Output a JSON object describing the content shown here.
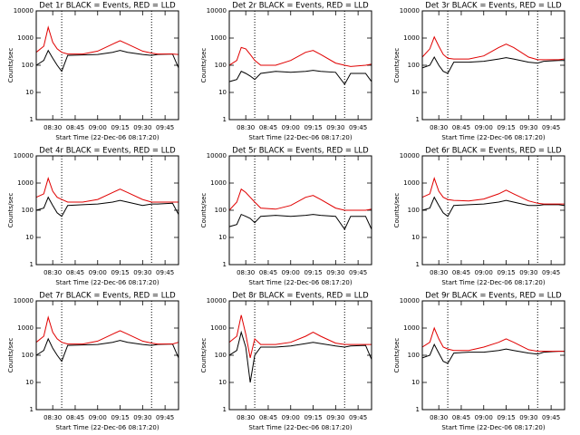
{
  "chart_data": [
    {
      "type": "line",
      "title": "Det 1r BLACK = Events, RED = LLD",
      "xlabel": "Start Time (22-Dec-06 08:17:20)",
      "ylabel": "Counts/sec",
      "log_y": true,
      "x": [
        "08:19",
        "08:24",
        "08:27",
        "08:30",
        "08:33",
        "08:36",
        "08:40",
        "08:50",
        "09:00",
        "09:10",
        "09:15",
        "09:20",
        "09:30",
        "09:36",
        "09:40",
        "09:50",
        "09:54"
      ],
      "series": [
        {
          "color": "#000000",
          "values": [
            100,
            150,
            350,
            180,
            100,
            60,
            230,
            240,
            250,
            300,
            350,
            300,
            250,
            230,
            250,
            260,
            80
          ]
        },
        {
          "color": "#e00000",
          "values": [
            300,
            500,
            2500,
            700,
            400,
            300,
            260,
            260,
            330,
            600,
            800,
            600,
            330,
            280,
            260,
            260,
            250
          ]
        }
      ],
      "vlines": [
        "08:36",
        "09:36"
      ],
      "xlim": [
        "08:19",
        "09:54"
      ],
      "xticks": [
        "08:30",
        "08:45",
        "09:00",
        "09:15",
        "09:30",
        "09:45"
      ],
      "ylim": [
        1,
        10000
      ],
      "yticks": [
        1,
        10,
        100,
        1000,
        10000
      ]
    },
    {
      "type": "line",
      "title": "Det 2r BLACK = Events, RED = LLD",
      "xlabel": "Start Time (22-Dec-06 08:17:20)",
      "ylabel": "Counts/sec",
      "log_y": true,
      "x": [
        "08:19",
        "08:24",
        "08:27",
        "08:30",
        "08:33",
        "08:36",
        "08:40",
        "08:50",
        "09:00",
        "09:10",
        "09:15",
        "09:20",
        "09:30",
        "09:36",
        "09:40",
        "09:50",
        "09:54"
      ],
      "series": [
        {
          "color": "#000000",
          "values": [
            25,
            30,
            60,
            50,
            40,
            30,
            50,
            60,
            55,
            60,
            65,
            60,
            55,
            20,
            50,
            50,
            25
          ]
        },
        {
          "color": "#e00000",
          "values": [
            100,
            150,
            450,
            400,
            250,
            150,
            100,
            100,
            150,
            300,
            350,
            250,
            120,
            100,
            90,
            100,
            110
          ]
        }
      ],
      "vlines": [
        "08:36",
        "09:36"
      ],
      "xlim": [
        "08:19",
        "09:54"
      ],
      "xticks": [
        "08:30",
        "08:45",
        "09:00",
        "09:15",
        "09:30",
        "09:45"
      ],
      "ylim": [
        1,
        10000
      ],
      "yticks": [
        1,
        10,
        100,
        1000,
        10000
      ]
    },
    {
      "type": "line",
      "title": "Det 3r BLACK = Events, RED = LLD",
      "xlabel": "Start Time (22-Dec-06 08:17:20)",
      "ylabel": "Counts/sec",
      "log_y": true,
      "x": [
        "08:19",
        "08:24",
        "08:27",
        "08:30",
        "08:33",
        "08:36",
        "08:40",
        "08:50",
        "09:00",
        "09:10",
        "09:15",
        "09:20",
        "09:30",
        "09:36",
        "09:40",
        "09:50",
        "09:54"
      ],
      "series": [
        {
          "color": "#000000",
          "values": [
            80,
            100,
            200,
            100,
            60,
            50,
            130,
            130,
            140,
            170,
            190,
            170,
            130,
            120,
            140,
            150,
            150
          ]
        },
        {
          "color": "#e00000",
          "values": [
            200,
            400,
            1100,
            500,
            250,
            180,
            170,
            170,
            220,
            450,
            600,
            450,
            200,
            160,
            160,
            160,
            170
          ]
        }
      ],
      "vlines": [
        "08:36",
        "09:36"
      ],
      "xlim": [
        "08:19",
        "09:54"
      ],
      "xticks": [
        "08:30",
        "08:45",
        "09:00",
        "09:15",
        "09:30",
        "09:45"
      ],
      "ylim": [
        1,
        10000
      ],
      "yticks": [
        1,
        10,
        100,
        1000,
        10000
      ]
    },
    {
      "type": "line",
      "title": "Det 4r BLACK = Events, RED = LLD",
      "xlabel": "Start Time (22-Dec-06 08:17:20)",
      "ylabel": "Counts/sec",
      "log_y": true,
      "x": [
        "08:19",
        "08:24",
        "08:27",
        "08:30",
        "08:33",
        "08:36",
        "08:40",
        "08:50",
        "09:00",
        "09:10",
        "09:15",
        "09:20",
        "09:30",
        "09:36",
        "09:40",
        "09:50",
        "09:54"
      ],
      "series": [
        {
          "color": "#000000",
          "values": [
            100,
            120,
            300,
            150,
            80,
            60,
            150,
            160,
            170,
            200,
            230,
            200,
            150,
            170,
            170,
            180,
            70
          ]
        },
        {
          "color": "#e00000",
          "values": [
            300,
            400,
            1500,
            500,
            300,
            250,
            200,
            200,
            250,
            450,
            600,
            450,
            250,
            200,
            200,
            200,
            200
          ]
        }
      ],
      "vlines": [
        "08:36",
        "09:36"
      ],
      "xlim": [
        "08:19",
        "09:54"
      ],
      "xticks": [
        "08:30",
        "08:45",
        "09:00",
        "09:15",
        "09:30",
        "09:45"
      ],
      "ylim": [
        1,
        10000
      ],
      "yticks": [
        1,
        10,
        100,
        1000,
        10000
      ]
    },
    {
      "type": "line",
      "title": "Det 5r BLACK = Events, RED = LLD",
      "xlabel": "Start Time (22-Dec-06 08:17:20)",
      "ylabel": "Counts/sec",
      "log_y": true,
      "x": [
        "08:19",
        "08:24",
        "08:27",
        "08:30",
        "08:33",
        "08:36",
        "08:40",
        "08:50",
        "09:00",
        "09:10",
        "09:15",
        "09:20",
        "09:30",
        "09:36",
        "09:40",
        "09:50",
        "09:54"
      ],
      "series": [
        {
          "color": "#000000",
          "values": [
            25,
            30,
            70,
            60,
            50,
            35,
            60,
            65,
            60,
            65,
            70,
            65,
            60,
            20,
            60,
            60,
            20
          ]
        },
        {
          "color": "#e00000",
          "values": [
            100,
            200,
            600,
            450,
            300,
            200,
            120,
            110,
            150,
            300,
            350,
            250,
            120,
            100,
            100,
            100,
            110
          ]
        }
      ],
      "vlines": [
        "08:36",
        "09:36"
      ],
      "xlim": [
        "08:19",
        "09:54"
      ],
      "xticks": [
        "08:30",
        "08:45",
        "09:00",
        "09:15",
        "09:30",
        "09:45"
      ],
      "ylim": [
        1,
        10000
      ],
      "yticks": [
        1,
        10,
        100,
        1000,
        10000
      ]
    },
    {
      "type": "line",
      "title": "Det 6r BLACK = Events, RED = LLD",
      "xlabel": "Start Time (22-Dec-06 08:17:20)",
      "ylabel": "Counts/sec",
      "log_y": true,
      "x": [
        "08:19",
        "08:24",
        "08:27",
        "08:30",
        "08:33",
        "08:36",
        "08:40",
        "08:50",
        "09:00",
        "09:10",
        "09:15",
        "09:20",
        "09:30",
        "09:36",
        "09:40",
        "09:50",
        "09:54"
      ],
      "series": [
        {
          "color": "#000000",
          "values": [
            100,
            120,
            300,
            150,
            80,
            60,
            150,
            160,
            170,
            200,
            230,
            200,
            150,
            150,
            160,
            160,
            150
          ]
        },
        {
          "color": "#e00000",
          "values": [
            300,
            400,
            1500,
            500,
            300,
            250,
            230,
            220,
            260,
            400,
            550,
            400,
            220,
            180,
            170,
            170,
            170
          ]
        }
      ],
      "vlines": [
        "08:36",
        "09:36"
      ],
      "xlim": [
        "08:19",
        "09:54"
      ],
      "xticks": [
        "08:30",
        "08:45",
        "09:00",
        "09:15",
        "09:30",
        "09:45"
      ],
      "ylim": [
        1,
        10000
      ],
      "yticks": [
        1,
        10,
        100,
        1000,
        10000
      ]
    },
    {
      "type": "line",
      "title": "Det 7r BLACK = Events, RED = LLD",
      "xlabel": "Start Time (22-Dec-06 08:17:20)",
      "ylabel": "Counts/sec",
      "log_y": true,
      "x": [
        "08:19",
        "08:24",
        "08:27",
        "08:30",
        "08:33",
        "08:36",
        "08:40",
        "08:50",
        "09:00",
        "09:10",
        "09:15",
        "09:20",
        "09:30",
        "09:36",
        "09:40",
        "09:50",
        "09:54"
      ],
      "series": [
        {
          "color": "#000000",
          "values": [
            100,
            150,
            400,
            180,
            100,
            60,
            230,
            240,
            250,
            300,
            350,
            300,
            250,
            230,
            250,
            260,
            80
          ]
        },
        {
          "color": "#e00000",
          "values": [
            300,
            500,
            2500,
            700,
            400,
            300,
            260,
            260,
            330,
            600,
            800,
            600,
            330,
            280,
            260,
            260,
            300
          ]
        }
      ],
      "vlines": [
        "08:36",
        "09:36"
      ],
      "xlim": [
        "08:19",
        "09:54"
      ],
      "xticks": [
        "08:30",
        "08:45",
        "09:00",
        "09:15",
        "09:30",
        "09:45"
      ],
      "ylim": [
        1,
        10000
      ],
      "yticks": [
        1,
        10,
        100,
        1000,
        10000
      ]
    },
    {
      "type": "line",
      "title": "Det 8r BLACK = Events, RED = LLD",
      "xlabel": "Start Time (22-Dec-06 08:17:20)",
      "ylabel": "Counts/sec",
      "log_y": true,
      "x": [
        "08:19",
        "08:24",
        "08:27",
        "08:30",
        "08:33",
        "08:36",
        "08:40",
        "08:50",
        "09:00",
        "09:10",
        "09:15",
        "09:20",
        "09:30",
        "09:36",
        "09:40",
        "09:50",
        "09:54"
      ],
      "series": [
        {
          "color": "#000000",
          "values": [
            100,
            150,
            700,
            200,
            10,
            100,
            200,
            200,
            220,
            270,
            300,
            270,
            220,
            200,
            220,
            230,
            70
          ]
        },
        {
          "color": "#e00000",
          "values": [
            300,
            500,
            3000,
            600,
            80,
            400,
            250,
            250,
            300,
            500,
            700,
            500,
            280,
            250,
            250,
            250,
            250
          ]
        }
      ],
      "vlines": [
        "08:36",
        "09:36"
      ],
      "xlim": [
        "08:19",
        "09:54"
      ],
      "xticks": [
        "08:30",
        "08:45",
        "09:00",
        "09:15",
        "09:30",
        "09:45"
      ],
      "ylim": [
        1,
        10000
      ],
      "yticks": [
        1,
        10,
        100,
        1000,
        10000
      ]
    },
    {
      "type": "line",
      "title": "Det 9r BLACK = Events, RED = LLD",
      "xlabel": "Start Time (22-Dec-06 08:17:20)",
      "ylabel": "Counts/sec",
      "log_y": true,
      "x": [
        "08:19",
        "08:24",
        "08:27",
        "08:30",
        "08:33",
        "08:36",
        "08:40",
        "08:50",
        "09:00",
        "09:10",
        "09:15",
        "09:20",
        "09:30",
        "09:36",
        "09:40",
        "09:50",
        "09:54"
      ],
      "series": [
        {
          "color": "#000000",
          "values": [
            80,
            100,
            250,
            120,
            60,
            50,
            120,
            130,
            130,
            150,
            170,
            150,
            120,
            110,
            130,
            140,
            140
          ]
        },
        {
          "color": "#e00000",
          "values": [
            200,
            300,
            1000,
            400,
            200,
            170,
            150,
            150,
            200,
            300,
            400,
            300,
            160,
            140,
            140,
            140,
            140
          ]
        }
      ],
      "vlines": [
        "08:36",
        "09:36"
      ],
      "xlim": [
        "08:19",
        "09:54"
      ],
      "xticks": [
        "08:30",
        "08:45",
        "09:00",
        "09:15",
        "09:30",
        "09:45"
      ],
      "ylim": [
        1,
        10000
      ],
      "yticks": [
        1,
        10,
        100,
        1000,
        10000
      ]
    }
  ]
}
